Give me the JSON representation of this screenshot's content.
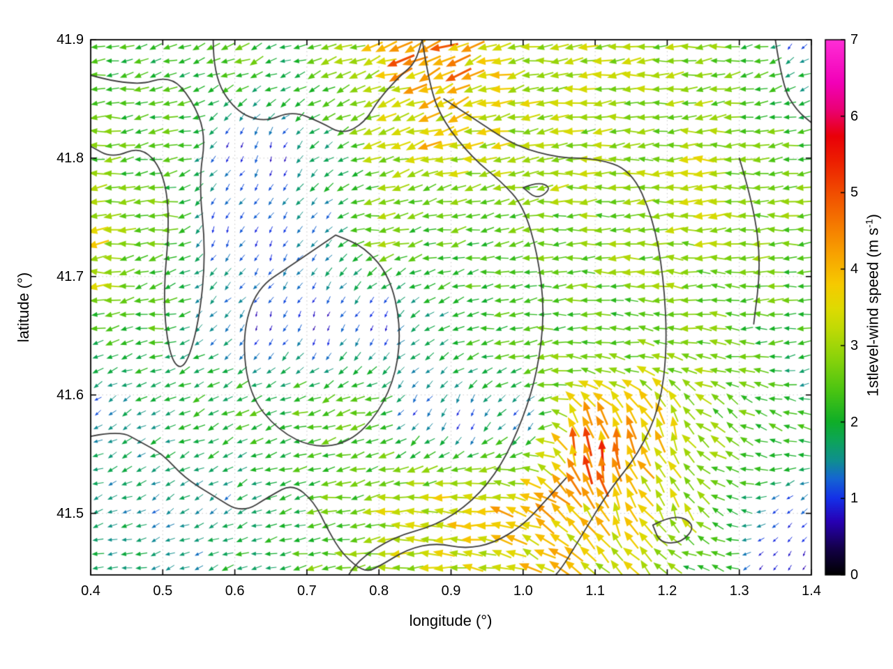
{
  "chart_data": {
    "type": "quiver",
    "title": "",
    "xlabel": "longitude (°)",
    "ylabel": "latitude (°)",
    "xlim": [
      0.4,
      1.4
    ],
    "ylim": [
      41.448,
      41.9
    ],
    "x_ticks": [
      "0.4",
      "0.5",
      "0.6",
      "0.7",
      "0.8",
      "0.9",
      "1.0",
      "1.1",
      "1.2",
      "1.3",
      "1.4"
    ],
    "x_tick_values": [
      0.4,
      0.5,
      0.6,
      0.7,
      0.8,
      0.9,
      1.0,
      1.1,
      1.2,
      1.3,
      1.4
    ],
    "y_ticks": [
      "41.5",
      "41.6",
      "41.7",
      "41.8",
      "41.9"
    ],
    "y_tick_values": [
      41.5,
      41.6,
      41.7,
      41.8,
      41.9
    ],
    "grid": "dotted",
    "grid_color": "#9a9a9a",
    "border_color": "#000000",
    "colorbar": {
      "label_prefix": "1stlevel-wind speed (m s",
      "label_sup": "-1",
      "label_suffix": ")",
      "min": 0,
      "max": 7,
      "ticks": [
        "0",
        "1",
        "2",
        "3",
        "4",
        "5",
        "6",
        "7"
      ],
      "tick_values": [
        0,
        1,
        2,
        3,
        4,
        5,
        6,
        7
      ],
      "stops": [
        [
          0.0,
          "#000000"
        ],
        [
          0.05,
          "#14004a"
        ],
        [
          0.1,
          "#2800b4"
        ],
        [
          0.143,
          "#1430e8"
        ],
        [
          0.18,
          "#1565d2"
        ],
        [
          0.214,
          "#0f8f8f"
        ],
        [
          0.25,
          "#0da45a"
        ],
        [
          0.286,
          "#0fae28"
        ],
        [
          0.34,
          "#46c313"
        ],
        [
          0.4,
          "#85d20b"
        ],
        [
          0.46,
          "#c0da05"
        ],
        [
          0.5,
          "#e0da02"
        ],
        [
          0.543,
          "#f6ca00"
        ],
        [
          0.6,
          "#f8a200"
        ],
        [
          0.657,
          "#f57800"
        ],
        [
          0.714,
          "#f14d00"
        ],
        [
          0.771,
          "#ed2000"
        ],
        [
          0.82,
          "#e90008"
        ],
        [
          0.871,
          "#eb0077"
        ],
        [
          0.92,
          "#f200b8"
        ],
        [
          1.0,
          "#ff2ed6"
        ]
      ]
    },
    "quiver": {
      "grid_nx": 50,
      "grid_ny": 38,
      "seed": 42,
      "jitter_dir_deg": 26,
      "jitter_speed": 0.32,
      "note": "control points are [lon, lat, speed_m_s, direction_deg_math (180=west,90=north)]",
      "control_points": [
        [
          0.42,
          41.88,
          2.2,
          185
        ],
        [
          0.52,
          41.88,
          2.1,
          195
        ],
        [
          0.6,
          41.89,
          2.6,
          200
        ],
        [
          0.68,
          41.88,
          2.0,
          195
        ],
        [
          0.76,
          41.88,
          2.8,
          200
        ],
        [
          0.83,
          41.89,
          4.6,
          195
        ],
        [
          0.86,
          41.9,
          5.0,
          200
        ],
        [
          0.9,
          41.87,
          4.4,
          215
        ],
        [
          0.96,
          41.87,
          3.6,
          195
        ],
        [
          1.05,
          41.87,
          3.2,
          185
        ],
        [
          1.15,
          41.87,
          3.0,
          185
        ],
        [
          1.25,
          41.87,
          2.9,
          185
        ],
        [
          1.33,
          41.88,
          2.2,
          190
        ],
        [
          1.38,
          41.9,
          0.9,
          235
        ],
        [
          1.39,
          41.86,
          1.8,
          200
        ],
        [
          0.42,
          41.82,
          2.6,
          180
        ],
        [
          0.52,
          41.82,
          2.4,
          185
        ],
        [
          0.6,
          41.81,
          0.7,
          250
        ],
        [
          0.66,
          41.8,
          0.7,
          255
        ],
        [
          0.73,
          41.81,
          1.8,
          215
        ],
        [
          0.8,
          41.82,
          3.2,
          190
        ],
        [
          0.87,
          41.82,
          3.8,
          195
        ],
        [
          0.95,
          41.81,
          3.3,
          185
        ],
        [
          1.05,
          41.8,
          3.1,
          182
        ],
        [
          1.15,
          41.8,
          3.0,
          183
        ],
        [
          1.25,
          41.8,
          3.2,
          180
        ],
        [
          1.35,
          41.8,
          2.6,
          185
        ],
        [
          0.41,
          41.74,
          3.5,
          182
        ],
        [
          0.41,
          41.7,
          3.4,
          183
        ],
        [
          0.5,
          41.75,
          2.6,
          180
        ],
        [
          0.58,
          41.74,
          0.7,
          250
        ],
        [
          0.65,
          41.73,
          0.8,
          250
        ],
        [
          0.72,
          41.74,
          1.2,
          230
        ],
        [
          0.8,
          41.74,
          3.0,
          185
        ],
        [
          0.88,
          41.74,
          2.3,
          190
        ],
        [
          0.96,
          41.73,
          2.3,
          188
        ],
        [
          1.05,
          41.73,
          2.4,
          185
        ],
        [
          1.15,
          41.74,
          2.7,
          182
        ],
        [
          1.25,
          41.75,
          3.1,
          180
        ],
        [
          1.34,
          41.74,
          2.9,
          182
        ],
        [
          1.39,
          41.72,
          2.3,
          185
        ],
        [
          0.42,
          41.66,
          2.1,
          190
        ],
        [
          0.5,
          41.66,
          2.3,
          185
        ],
        [
          0.57,
          41.66,
          1.3,
          230
        ],
        [
          0.64,
          41.66,
          0.6,
          255
        ],
        [
          0.72,
          41.66,
          0.5,
          260
        ],
        [
          0.8,
          41.66,
          0.6,
          250
        ],
        [
          0.87,
          41.66,
          1.6,
          210
        ],
        [
          0.95,
          41.66,
          2.2,
          188
        ],
        [
          1.04,
          41.66,
          2.3,
          185
        ],
        [
          1.13,
          41.66,
          2.3,
          180
        ],
        [
          1.22,
          41.66,
          2.6,
          175
        ],
        [
          1.32,
          41.66,
          2.3,
          182
        ],
        [
          1.39,
          41.62,
          1.6,
          200
        ],
        [
          0.42,
          41.59,
          1.2,
          215
        ],
        [
          0.49,
          41.59,
          1.8,
          200
        ],
        [
          0.56,
          41.59,
          2.1,
          205
        ],
        [
          0.63,
          41.59,
          2.3,
          200
        ],
        [
          0.71,
          41.58,
          2.7,
          195
        ],
        [
          0.78,
          41.58,
          2.8,
          190
        ],
        [
          0.85,
          41.59,
          1.0,
          245
        ],
        [
          0.92,
          41.58,
          0.7,
          255
        ],
        [
          1.0,
          41.58,
          1.0,
          240
        ],
        [
          1.08,
          41.56,
          4.6,
          95
        ],
        [
          1.1,
          41.545,
          5.3,
          92
        ],
        [
          1.13,
          41.55,
          4.3,
          100
        ],
        [
          1.2,
          41.57,
          3.9,
          105
        ],
        [
          1.28,
          41.58,
          2.6,
          140
        ],
        [
          1.36,
          41.58,
          2.4,
          160
        ],
        [
          0.42,
          41.51,
          1.5,
          200
        ],
        [
          0.5,
          41.51,
          1.4,
          210
        ],
        [
          0.58,
          41.51,
          1.4,
          215
        ],
        [
          0.66,
          41.51,
          1.9,
          195
        ],
        [
          0.74,
          41.5,
          2.5,
          188
        ],
        [
          0.82,
          41.5,
          3.2,
          182
        ],
        [
          0.9,
          41.5,
          3.6,
          178
        ],
        [
          0.98,
          41.5,
          3.9,
          165
        ],
        [
          1.05,
          41.5,
          4.1,
          135
        ],
        [
          1.13,
          41.5,
          3.8,
          115
        ],
        [
          1.21,
          41.5,
          3.3,
          110
        ],
        [
          1.28,
          41.5,
          2.2,
          150
        ],
        [
          1.36,
          41.5,
          0.9,
          220
        ],
        [
          0.44,
          41.46,
          1.7,
          190
        ],
        [
          0.54,
          41.46,
          1.5,
          200
        ],
        [
          0.64,
          41.46,
          2.0,
          190
        ],
        [
          0.74,
          41.46,
          2.6,
          185
        ],
        [
          0.84,
          41.46,
          3.2,
          180
        ],
        [
          0.94,
          41.46,
          3.5,
          172
        ],
        [
          1.04,
          41.46,
          3.8,
          150
        ],
        [
          1.14,
          41.46,
          3.2,
          130
        ],
        [
          1.24,
          41.46,
          2.2,
          160
        ],
        [
          1.34,
          41.46,
          0.7,
          230
        ],
        [
          1.39,
          41.46,
          0.6,
          240
        ]
      ]
    },
    "contours": {
      "color": "#3d3d3d",
      "width": 1.8,
      "paths": [
        [
          [
            0.4,
            41.87
          ],
          [
            0.46,
            41.86
          ],
          [
            0.51,
            41.87
          ],
          [
            0.54,
            41.85
          ],
          [
            0.56,
            41.82
          ],
          [
            0.55,
            41.78
          ],
          [
            0.56,
            41.72
          ],
          [
            0.55,
            41.66
          ],
          [
            0.53,
            41.62
          ],
          [
            0.51,
            41.63
          ],
          [
            0.5,
            41.68
          ],
          [
            0.51,
            41.75
          ],
          [
            0.5,
            41.79
          ],
          [
            0.47,
            41.81
          ],
          [
            0.43,
            41.8
          ],
          [
            0.4,
            41.81
          ]
        ],
        [
          [
            0.57,
            41.9
          ],
          [
            0.57,
            41.87
          ],
          [
            0.6,
            41.84
          ],
          [
            0.64,
            41.83
          ],
          [
            0.68,
            41.84
          ],
          [
            0.72,
            41.83
          ],
          [
            0.75,
            41.82
          ],
          [
            0.78,
            41.83
          ],
          [
            0.8,
            41.85
          ],
          [
            0.83,
            41.87
          ],
          [
            0.85,
            41.88
          ],
          [
            0.86,
            41.9
          ]
        ],
        [
          [
            0.86,
            41.9
          ],
          [
            0.87,
            41.86
          ],
          [
            0.89,
            41.83
          ],
          [
            0.93,
            41.8
          ],
          [
            0.97,
            41.78
          ],
          [
            1.0,
            41.76
          ],
          [
            1.02,
            41.72
          ],
          [
            1.03,
            41.67
          ],
          [
            1.02,
            41.62
          ],
          [
            1.0,
            41.58
          ],
          [
            0.97,
            41.54
          ],
          [
            0.93,
            41.51
          ],
          [
            0.88,
            41.49
          ],
          [
            0.82,
            41.48
          ],
          [
            0.77,
            41.46
          ],
          [
            0.75,
            41.44
          ]
        ],
        [
          [
            0.74,
            41.735
          ],
          [
            0.68,
            41.71
          ],
          [
            0.63,
            41.69
          ],
          [
            0.61,
            41.65
          ],
          [
            0.62,
            41.6
          ],
          [
            0.66,
            41.57
          ],
          [
            0.71,
            41.555
          ],
          [
            0.76,
            41.56
          ],
          [
            0.8,
            41.585
          ],
          [
            0.825,
            41.62
          ],
          [
            0.83,
            41.66
          ],
          [
            0.815,
            41.7
          ],
          [
            0.78,
            41.725
          ],
          [
            0.74,
            41.735
          ]
        ],
        [
          [
            0.89,
            41.85
          ],
          [
            0.94,
            41.83
          ],
          [
            0.99,
            41.81
          ],
          [
            1.05,
            41.8
          ],
          [
            1.1,
            41.8
          ],
          [
            1.15,
            41.79
          ],
          [
            1.18,
            41.75
          ],
          [
            1.195,
            41.7
          ],
          [
            1.2,
            41.64
          ],
          [
            1.19,
            41.59
          ],
          [
            1.16,
            41.55
          ],
          [
            1.12,
            41.52
          ],
          [
            1.08,
            41.48
          ],
          [
            1.05,
            41.45
          ],
          [
            1.03,
            41.44
          ]
        ],
        [
          [
            1.0,
            41.775
          ],
          [
            1.02,
            41.78
          ],
          [
            1.04,
            41.775
          ],
          [
            1.02,
            41.765
          ],
          [
            1.0,
            41.775
          ]
        ],
        [
          [
            0.4,
            41.565
          ],
          [
            0.44,
            41.57
          ],
          [
            0.47,
            41.56
          ],
          [
            0.5,
            41.55
          ],
          [
            0.53,
            41.53
          ],
          [
            0.57,
            41.515
          ],
          [
            0.61,
            41.5
          ],
          [
            0.65,
            41.515
          ],
          [
            0.68,
            41.525
          ],
          [
            0.71,
            41.51
          ],
          [
            0.73,
            41.485
          ],
          [
            0.75,
            41.465
          ],
          [
            0.78,
            41.45
          ],
          [
            0.8,
            41.455
          ],
          [
            0.84,
            41.47
          ],
          [
            0.88,
            41.475
          ],
          [
            0.92,
            41.47
          ],
          [
            0.96,
            41.475
          ],
          [
            1.0,
            41.49
          ],
          [
            1.03,
            41.51
          ],
          [
            1.06,
            41.53
          ]
        ],
        [
          [
            1.18,
            41.49
          ],
          [
            1.21,
            41.5
          ],
          [
            1.24,
            41.49
          ],
          [
            1.22,
            41.475
          ],
          [
            1.19,
            41.475
          ],
          [
            1.18,
            41.49
          ]
        ],
        [
          [
            1.3,
            41.8
          ],
          [
            1.32,
            41.76
          ],
          [
            1.33,
            41.71
          ],
          [
            1.32,
            41.66
          ]
        ],
        [
          [
            1.35,
            41.9
          ],
          [
            1.36,
            41.86
          ],
          [
            1.38,
            41.84
          ],
          [
            1.4,
            41.83
          ]
        ]
      ]
    }
  }
}
